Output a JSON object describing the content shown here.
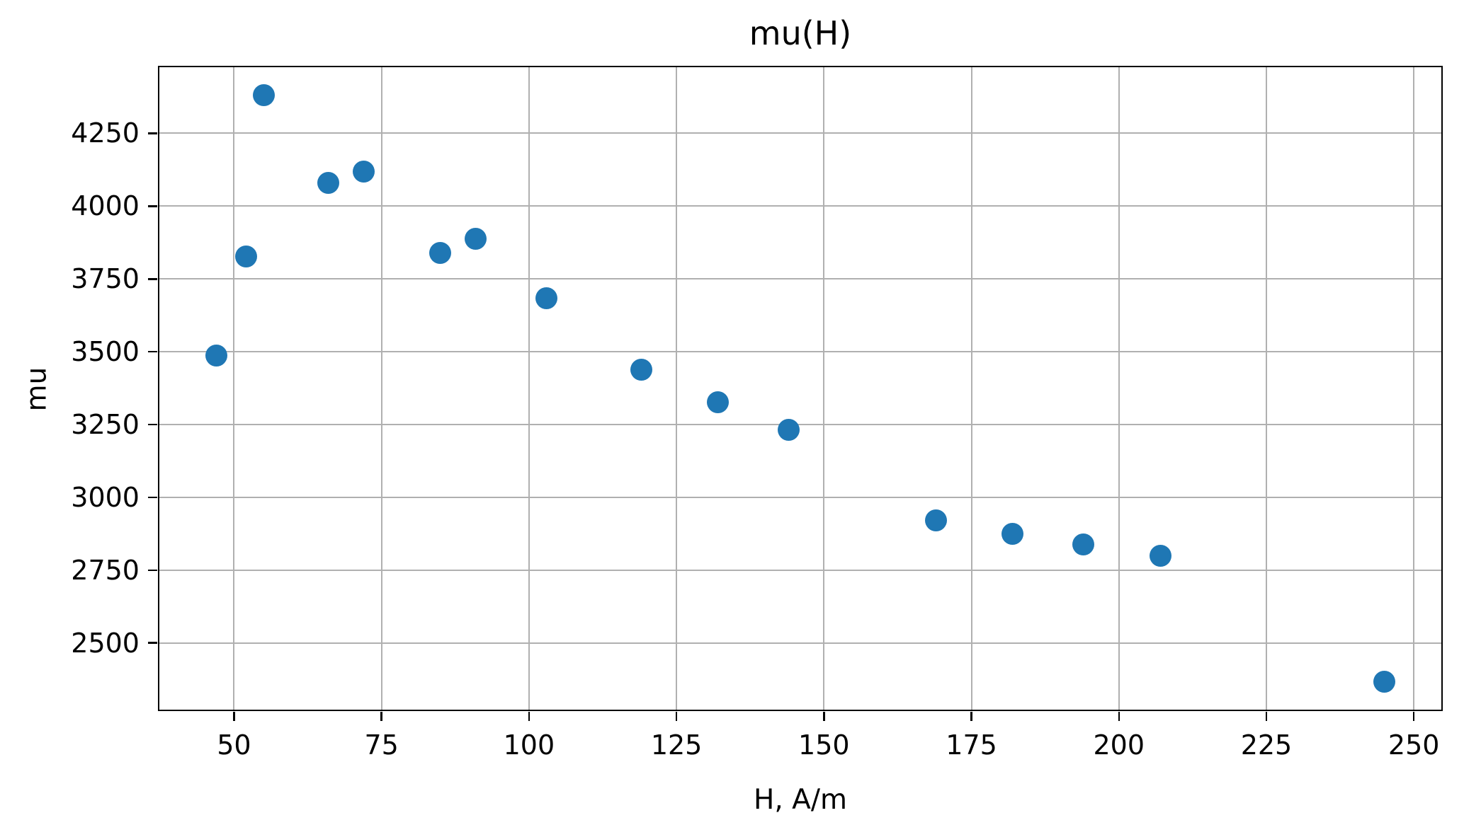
{
  "figure": {
    "background": "#ffffff",
    "text_color": "#000000"
  },
  "chart_data": {
    "type": "scatter",
    "title": "mu(H)",
    "xlabel": "H, A/m",
    "ylabel": "mu",
    "points": [
      {
        "x": 47,
        "y": 3487
      },
      {
        "x": 52,
        "y": 3826
      },
      {
        "x": 55,
        "y": 4380
      },
      {
        "x": 66,
        "y": 4079
      },
      {
        "x": 72,
        "y": 4119
      },
      {
        "x": 85,
        "y": 3840
      },
      {
        "x": 91,
        "y": 3888
      },
      {
        "x": 103,
        "y": 3685
      },
      {
        "x": 119,
        "y": 3439
      },
      {
        "x": 132,
        "y": 3326
      },
      {
        "x": 144,
        "y": 3233
      },
      {
        "x": 169,
        "y": 2920
      },
      {
        "x": 182,
        "y": 2874
      },
      {
        "x": 194,
        "y": 2838
      },
      {
        "x": 207,
        "y": 2800
      },
      {
        "x": 245,
        "y": 2367
      }
    ],
    "xlim": [
      37.1,
      254.9
    ],
    "ylim": [
      2266,
      4482
    ],
    "x_ticks": [
      50,
      75,
      100,
      125,
      150,
      175,
      200,
      225,
      250
    ],
    "y_ticks": [
      2500,
      2750,
      3000,
      3250,
      3500,
      3750,
      4000,
      4250
    ],
    "grid": true,
    "legend_position": "none",
    "marker_color": "#1f77b4",
    "grid_color": "#b0b0b0"
  }
}
